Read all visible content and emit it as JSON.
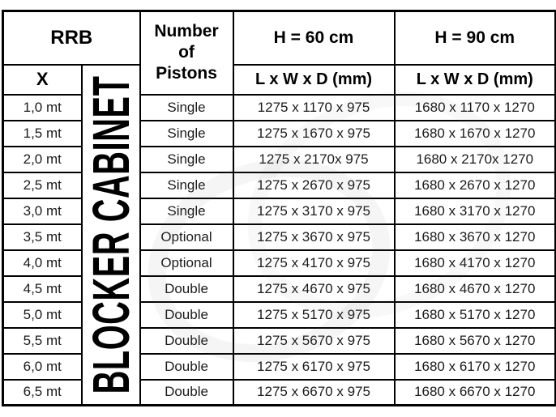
{
  "table": {
    "header": {
      "rrb": "RRB",
      "x": "X",
      "pistons": "Number of Pistons",
      "h60": "H = 60 cm",
      "h90": "H = 90 cm",
      "dims60": "L x W x D (mm)",
      "dims90": "L x W x D (mm)",
      "cabinet": "BLOCKER CABINET"
    },
    "rows": [
      {
        "x": "1,0 mt",
        "pistons": "Single",
        "d60": "1275 x 1170 x 975",
        "d90": "1680 x 1170 x 1270"
      },
      {
        "x": "1,5 mt",
        "pistons": "Single",
        "d60": "1275 x 1670 x 975",
        "d90": "1680 x 1670 x 1270"
      },
      {
        "x": "2,0 mt",
        "pistons": "Single",
        "d60": "1275 x 2170x 975",
        "d90": "1680 x 2170x 1270"
      },
      {
        "x": "2,5 mt",
        "pistons": "Single",
        "d60": "1275 x 2670 x 975",
        "d90": "1680 x 2670 x 1270"
      },
      {
        "x": "3,0 mt",
        "pistons": "Single",
        "d60": "1275 x 3170 x 975",
        "d90": "1680 x 3170 x 1270"
      },
      {
        "x": "3,5 mt",
        "pistons": "Optional",
        "d60": "1275 x 3670 x 975",
        "d90": "1680 x 3670 x 1270"
      },
      {
        "x": "4,0 mt",
        "pistons": "Optional",
        "d60": "1275 x 4170 x 975",
        "d90": "1680 x 4170 x 1270"
      },
      {
        "x": "4,5 mt",
        "pistons": "Double",
        "d60": "1275 x 4670 x 975",
        "d90": "1680 x 4670 x 1270"
      },
      {
        "x": "5,0 mt",
        "pistons": "Double",
        "d60": "1275 x 5170 x 975",
        "d90": "1680 x 5170 x 1270"
      },
      {
        "x": "5,5 mt",
        "pistons": "Double",
        "d60": "1275 x 5670 x 975",
        "d90": "1680 x 5670 x 1270"
      },
      {
        "x": "6,0 mt",
        "pistons": "Double",
        "d60": "1275 x 6170 x 975",
        "d90": "1680 x 6170 x 1270"
      },
      {
        "x": "6,5 mt",
        "pistons": "Double",
        "d60": "1275 x 6670 x 975",
        "d90": "1680 x 6670 x 1270"
      }
    ]
  },
  "colors": {
    "border": "#000000",
    "text": "#1b1b1b",
    "background": "#ffffff"
  }
}
